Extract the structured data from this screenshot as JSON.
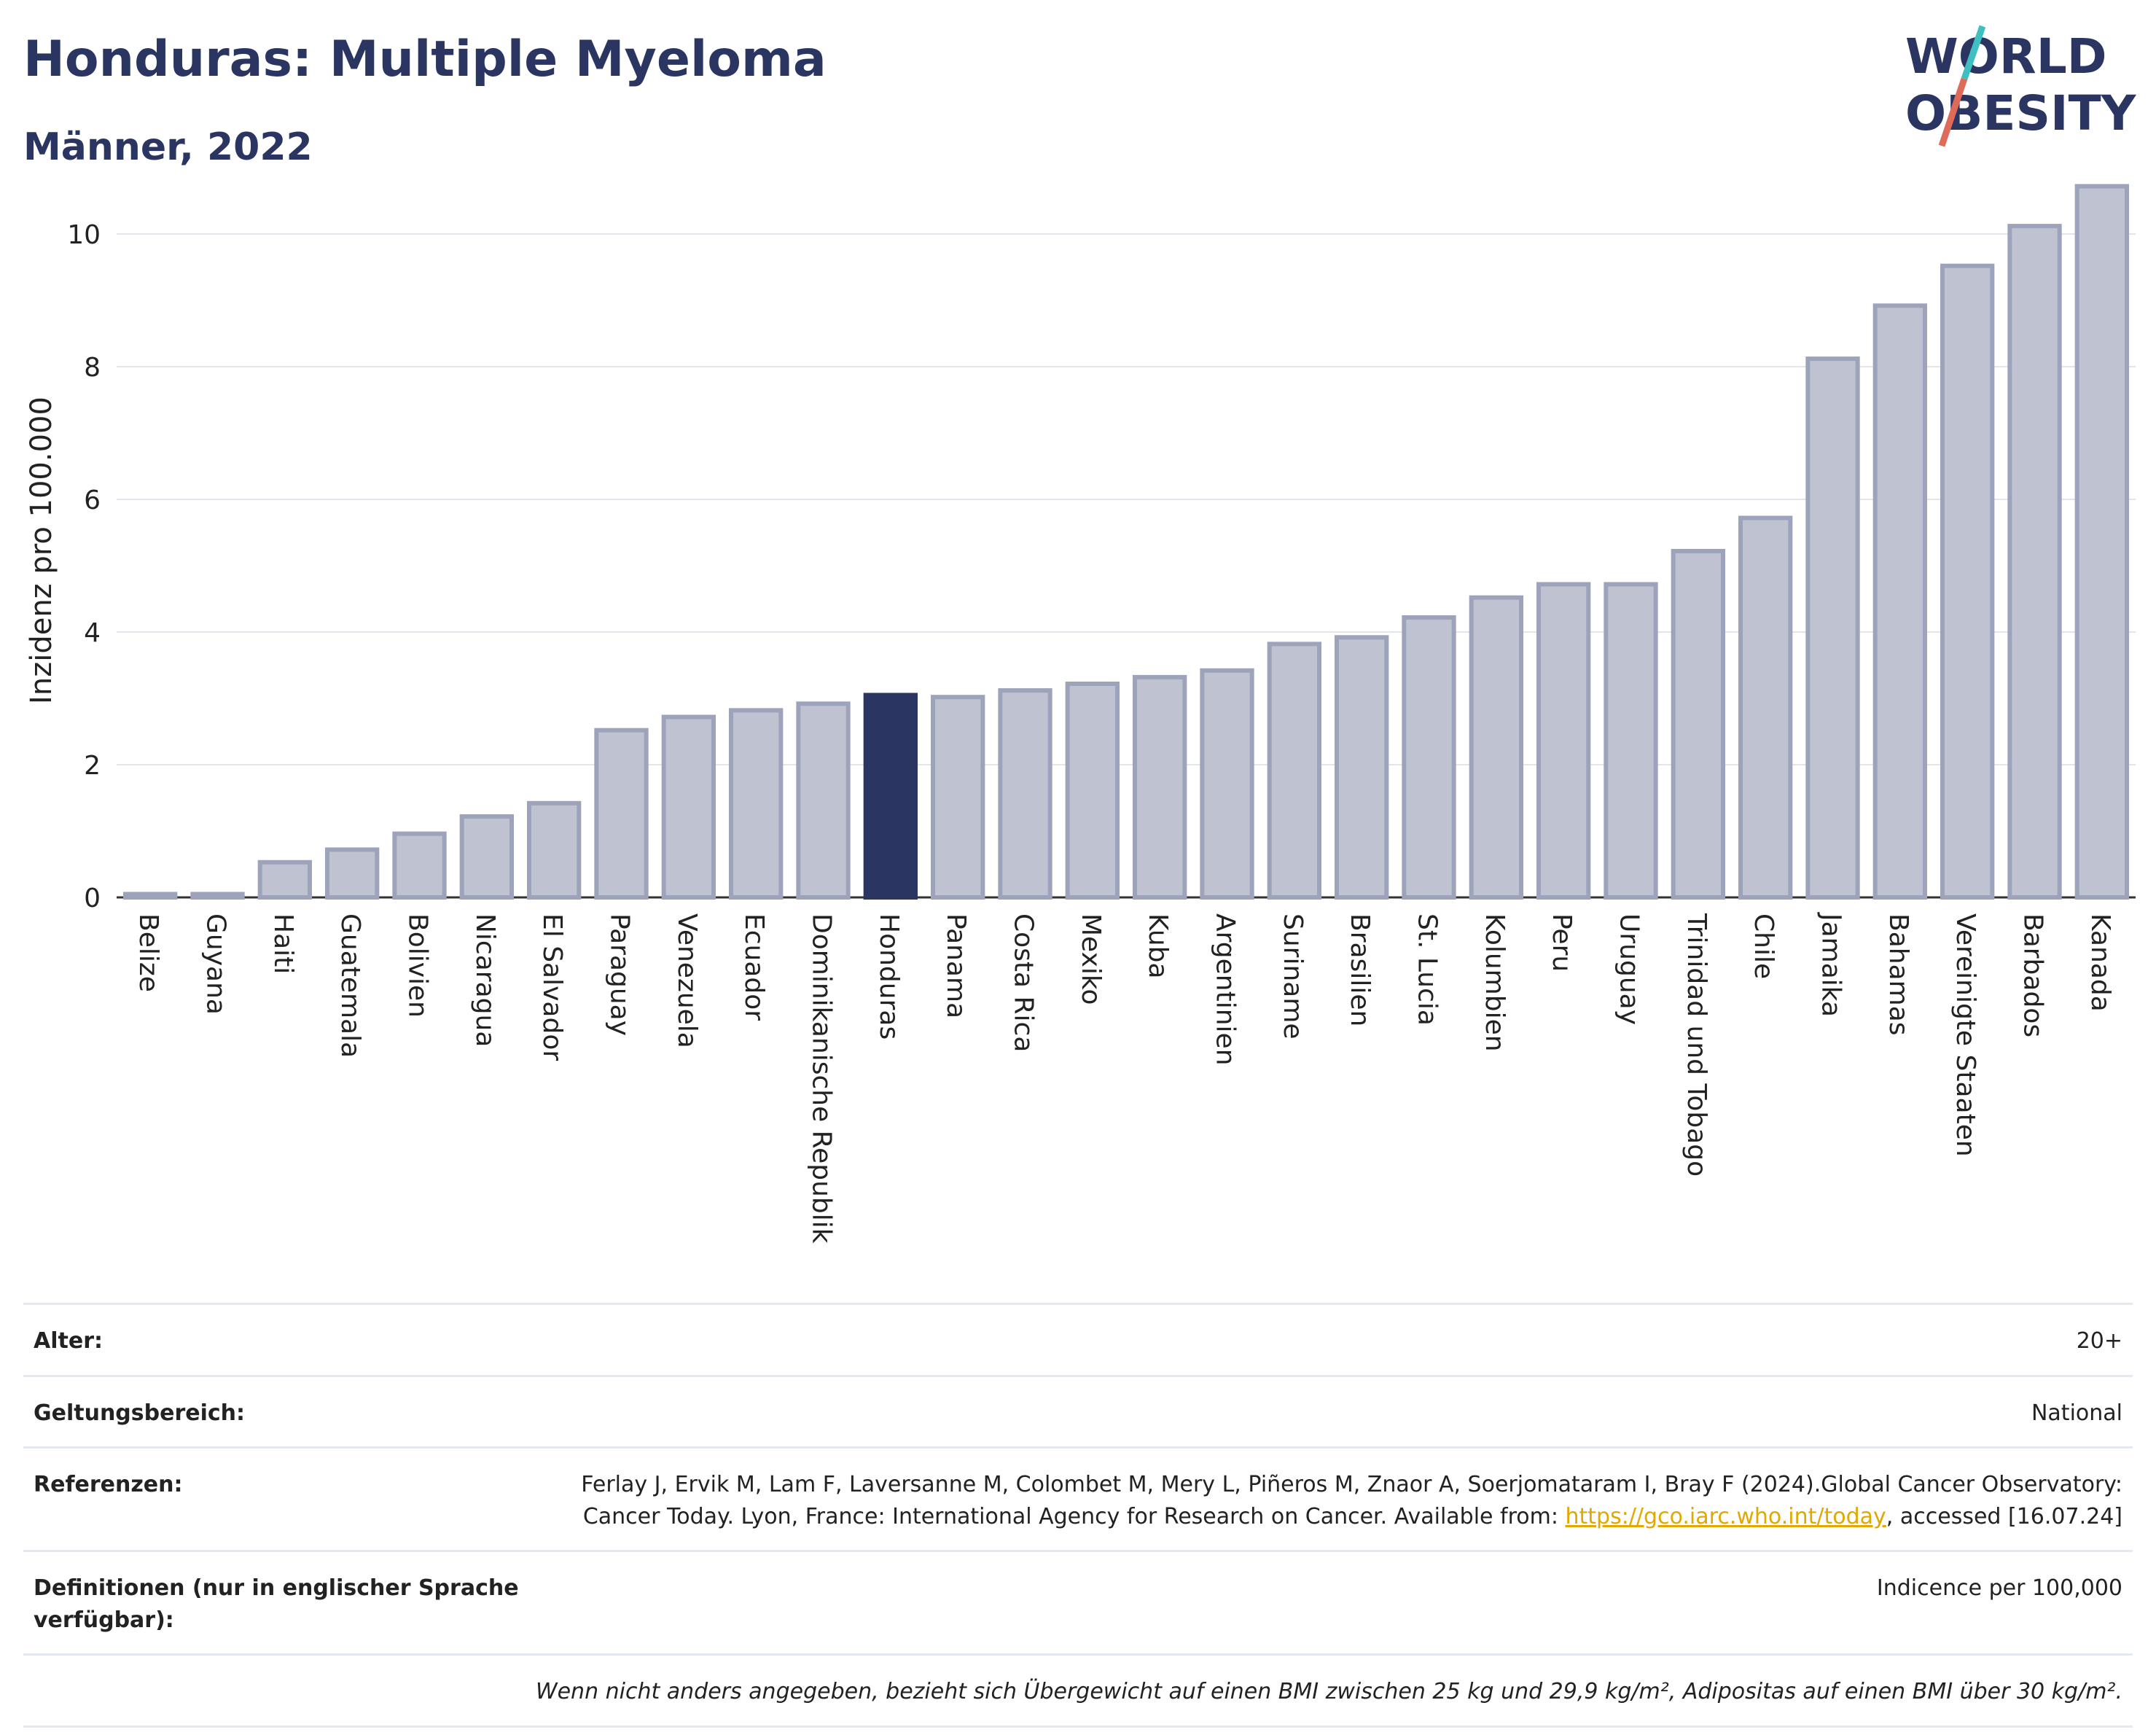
{
  "header": {
    "title": "Honduras: Multiple Myeloma",
    "subtitle": "Männer, 2022"
  },
  "logo": {
    "line1": "WORLD",
    "line2": "OBESITY"
  },
  "colors": {
    "highlight": "#2a3561",
    "bar": "#bfc2d0",
    "bar_edge": "#9da3ba",
    "text": "#2a3561",
    "accent_teal": "#3fbfbf",
    "accent_red": "#e06a5a"
  },
  "chart_data": {
    "type": "bar",
    "categories": [
      "Belize",
      "Guyana",
      "Haiti",
      "Guatemala",
      "Bolivien",
      "Nicaragua",
      "El Salvador",
      "Paraguay",
      "Venezuela",
      "Ecuador",
      "Dominikanische Republik",
      "Honduras",
      "Panama",
      "Costa Rica",
      "Mexiko",
      "Kuba",
      "Argentinien",
      "Suriname",
      "Brasilien",
      "St. Lucia",
      "Kolumbien",
      "Peru",
      "Uruguay",
      "Trinidad und Tobago",
      "Chile",
      "Jamaika",
      "Bahamas",
      "Vereinigte Staaten",
      "Barbados",
      "Kanada"
    ],
    "values": [
      0.05,
      0.05,
      0.53,
      0.72,
      0.96,
      1.22,
      1.42,
      2.52,
      2.72,
      2.82,
      2.92,
      3.05,
      3.02,
      3.12,
      3.22,
      3.32,
      3.42,
      3.82,
      3.92,
      4.22,
      4.52,
      4.72,
      4.72,
      5.22,
      5.72,
      8.12,
      8.92,
      9.52,
      10.12,
      10.72
    ],
    "highlight": "Honduras",
    "ylabel": "Inzidenz pro 100.000",
    "xlabel": "",
    "ylim": [
      0,
      11
    ],
    "yticks": [
      0,
      2,
      4,
      6,
      8,
      10
    ],
    "grid": true
  },
  "info": {
    "age_label": "Alter:",
    "age_value": "20+",
    "scope_label": "Geltungsbereich:",
    "scope_value": "National",
    "ref_label": "Referenzen:",
    "ref_text_1": "Ferlay J, Ervik M, Lam F, Laversanne M, Colombet M, Mery L, Piñeros M, Znaor A, Soerjomataram I, Bray F (2024).Global Cancer Observatory: Cancer Today. Lyon, France: International Agency for Research on Cancer. Available from: ",
    "ref_link": "https://gco.iarc.who.int/today",
    "ref_text_2": ", accessed [16.07.24]",
    "def_label": "Definitionen (nur in englischer Sprache verfügbar):",
    "def_value": "Indicence per 100,000",
    "note": "Wenn nicht anders angegeben, bezieht sich Übergewicht auf einen BMI zwischen 25 kg und 29,9 kg/m², Adipositas auf einen BMI über 30 kg/m²."
  }
}
